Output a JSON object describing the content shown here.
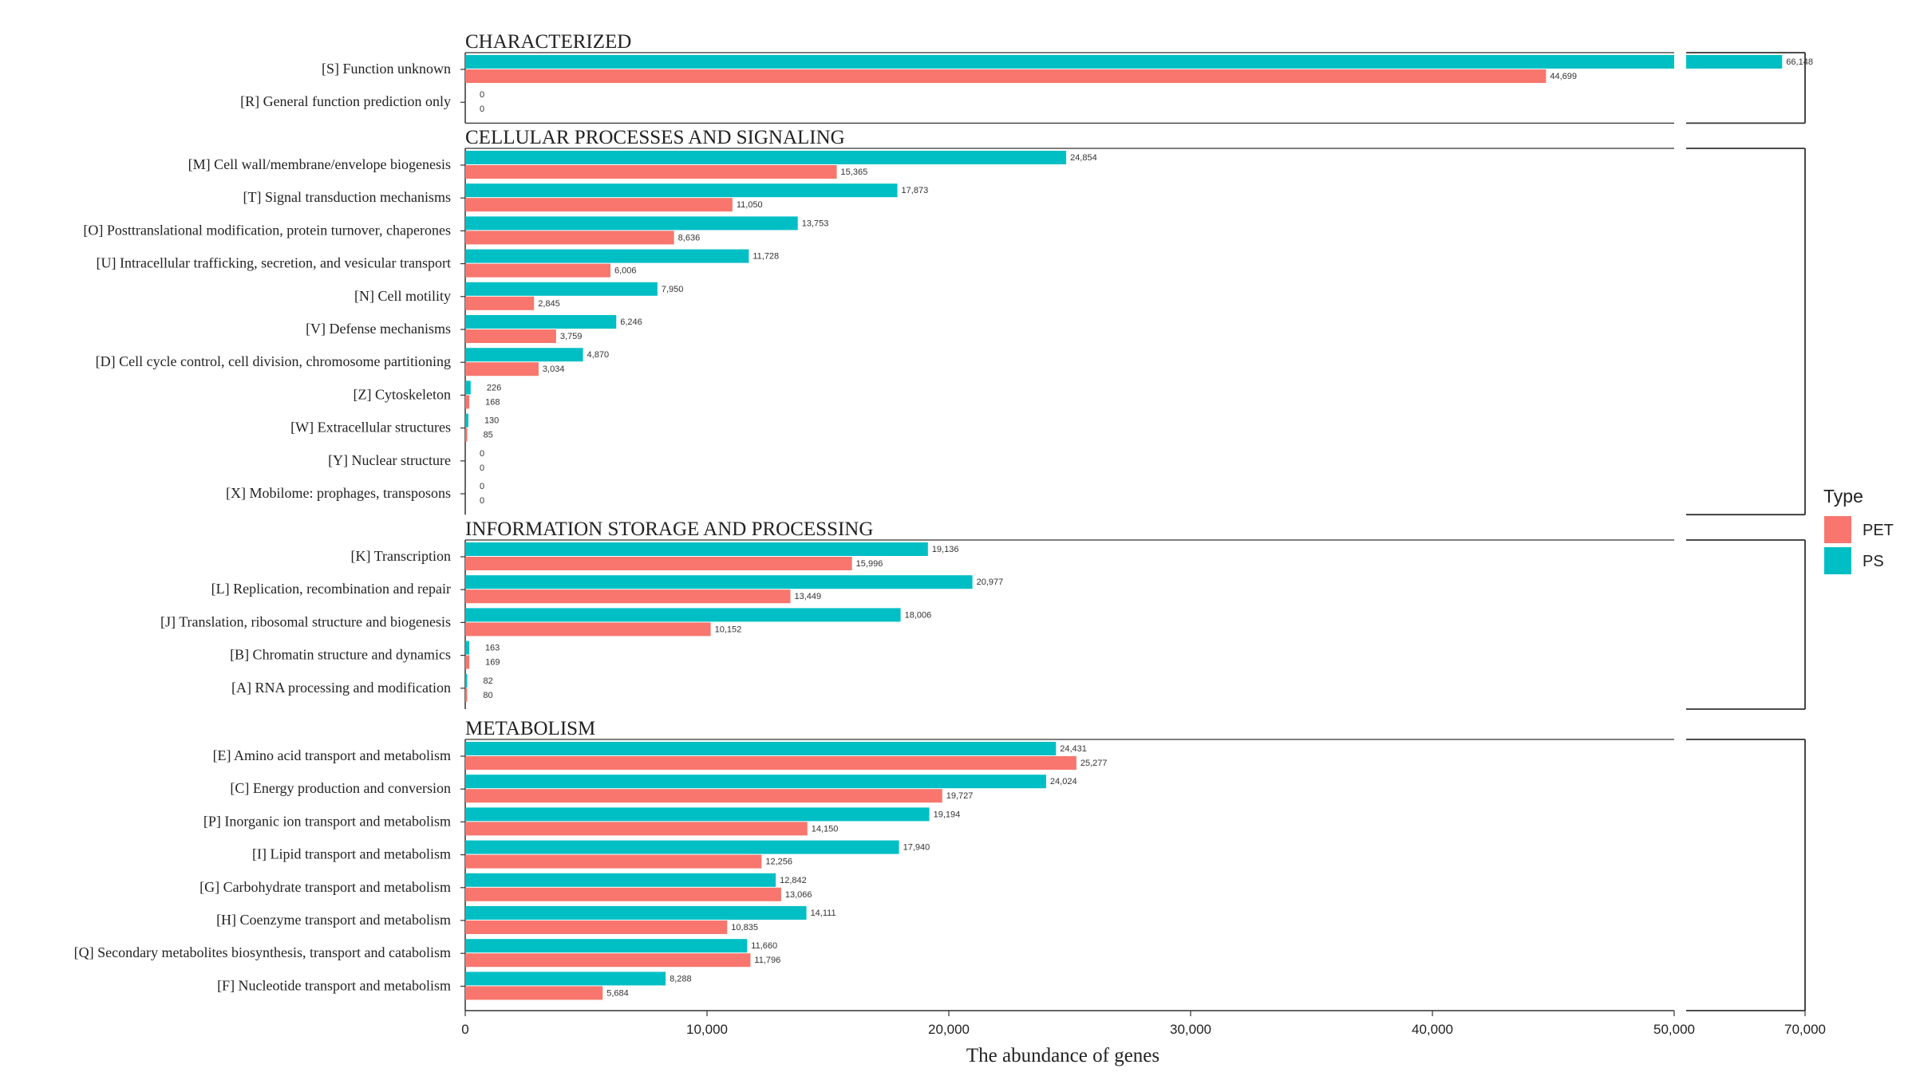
{
  "chart_data": {
    "type": "bar",
    "orientation": "horizontal",
    "xlabel": "The abundance of genes",
    "x_ticks": [
      "0",
      "10,000",
      "20,000",
      "30,000",
      "40,000",
      "50,000",
      "70,000"
    ],
    "x_axis_break": [
      50000,
      70000
    ],
    "xlim": [
      0,
      70000
    ],
    "legend": {
      "title": "Type",
      "position": "right"
    },
    "series_names": [
      "PET",
      "PS"
    ],
    "colors": {
      "PS": "#00BFC4",
      "PET": "#F8766D"
    },
    "facets": [
      {
        "title": "CHARACTERIZED",
        "categories": [
          {
            "label": "[S] Function unknown",
            "PS": 66148,
            "PET": 44699,
            "PS_label": "66,148",
            "PET_label": "44,699"
          },
          {
            "label": "[R] General function prediction only",
            "PS": 0,
            "PET": 0,
            "PS_label": "0",
            "PET_label": "0"
          }
        ]
      },
      {
        "title": "CELLULAR PROCESSES AND SIGNALING",
        "categories": [
          {
            "label": "[M] Cell wall/membrane/envelope biogenesis",
            "PS": 24854,
            "PET": 15365,
            "PS_label": "24,854",
            "PET_label": "15,365"
          },
          {
            "label": "[T] Signal transduction mechanisms",
            "PS": 17873,
            "PET": 11050,
            "PS_label": "17,873",
            "PET_label": "11,050"
          },
          {
            "label": "[O] Posttranslational modification, protein turnover, chaperones",
            "PS": 13753,
            "PET": 8636,
            "PS_label": "13,753",
            "PET_label": "8,636"
          },
          {
            "label": "[U] Intracellular trafficking, secretion, and vesicular transport",
            "PS": 11728,
            "PET": 6006,
            "PS_label": "11,728",
            "PET_label": "6,006"
          },
          {
            "label": "[N] Cell motility",
            "PS": 7950,
            "PET": 2845,
            "PS_label": "7,950",
            "PET_label": "2,845"
          },
          {
            "label": "[V] Defense mechanisms",
            "PS": 6246,
            "PET": 3759,
            "PS_label": "6,246",
            "PET_label": "3,759"
          },
          {
            "label": "[D] Cell cycle control, cell division, chromosome partitioning",
            "PS": 4870,
            "PET": 3034,
            "PS_label": "4,870",
            "PET_label": "3,034"
          },
          {
            "label": "[Z] Cytoskeleton",
            "PS": 226,
            "PET": 168,
            "PS_label": "226",
            "PET_label": "168"
          },
          {
            "label": "[W] Extracellular structures",
            "PS": 130,
            "PET": 85,
            "PS_label": "130",
            "PET_label": "85"
          },
          {
            "label": "[Y] Nuclear structure",
            "PS": 0,
            "PET": 0,
            "PS_label": "0",
            "PET_label": "0"
          },
          {
            "label": "[X] Mobilome: prophages, transposons",
            "PS": 0,
            "PET": 0,
            "PS_label": "0",
            "PET_label": "0"
          }
        ]
      },
      {
        "title": "INFORMATION STORAGE AND PROCESSING",
        "categories": [
          {
            "label": "[K] Transcription",
            "PS": 19136,
            "PET": 15996,
            "PS_label": "19,136",
            "PET_label": "15,996"
          },
          {
            "label": "[L] Replication, recombination and repair",
            "PS": 20977,
            "PET": 13449,
            "PS_label": "20,977",
            "PET_label": "13,449"
          },
          {
            "label": "[J] Translation, ribosomal structure and biogenesis",
            "PS": 18006,
            "PET": 10152,
            "PS_label": "18,006",
            "PET_label": "10,152"
          },
          {
            "label": "[B] Chromatin structure and dynamics",
            "PS": 163,
            "PET": 169,
            "PS_label": "163",
            "PET_label": "169"
          },
          {
            "label": "[A] RNA processing and modification",
            "PS": 82,
            "PET": 80,
            "PS_label": "82",
            "PET_label": "80"
          }
        ]
      },
      {
        "title": "METABOLISM",
        "categories": [
          {
            "label": "[E] Amino acid transport and metabolism",
            "PS": 24431,
            "PET": 25277,
            "PS_label": "24,431",
            "PET_label": "25,277"
          },
          {
            "label": "[C] Energy production and conversion",
            "PS": 24024,
            "PET": 19727,
            "PS_label": "24,024",
            "PET_label": "19,727"
          },
          {
            "label": "[P] Inorganic ion transport and metabolism",
            "PS": 19194,
            "PET": 14150,
            "PS_label": "19,194",
            "PET_label": "14,150"
          },
          {
            "label": "[I] Lipid transport and metabolism",
            "PS": 17940,
            "PET": 12256,
            "PS_label": "17,940",
            "PET_label": "12,256"
          },
          {
            "label": "[G] Carbohydrate transport and metabolism",
            "PS": 12842,
            "PET": 13066,
            "PS_label": "12,842",
            "PET_label": "13,066"
          },
          {
            "label": "[H] Coenzyme transport and metabolism",
            "PS": 14111,
            "PET": 10835,
            "PS_label": "14,111",
            "PET_label": "10,835"
          },
          {
            "label": "[Q] Secondary metabolites biosynthesis, transport and catabolism",
            "PS": 11660,
            "PET": 11796,
            "PS_label": "11,660",
            "PET_label": "11,796"
          },
          {
            "label": "[F] Nucleotide transport and metabolism",
            "PS": 8288,
            "PET": 5684,
            "PS_label": "8,288",
            "PET_label": "5,684"
          }
        ]
      }
    ]
  }
}
